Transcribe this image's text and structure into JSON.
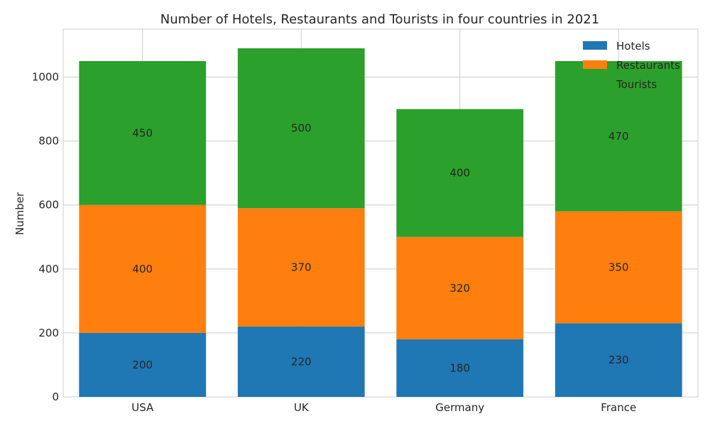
{
  "chart_data": {
    "type": "bar",
    "stacked": true,
    "title": "Number of Hotels, Restaurants and Tourists in four countries in 2021",
    "xlabel": "",
    "ylabel": "Number",
    "categories": [
      "USA",
      "UK",
      "Germany",
      "France"
    ],
    "series": [
      {
        "name": "Hotels",
        "values": [
          200,
          220,
          180,
          230
        ],
        "color": "#1f77b4"
      },
      {
        "name": "Restaurants",
        "values": [
          400,
          370,
          320,
          350
        ],
        "color": "#ff7f0e"
      },
      {
        "name": "Tourists",
        "values": [
          450,
          500,
          400,
          470
        ],
        "color": "#2ca02c"
      }
    ],
    "ylim": [
      0,
      1150
    ],
    "yticks": [
      0,
      200,
      400,
      600,
      800,
      1000
    ],
    "grid": true,
    "legend": "top-right",
    "data_labels": true
  }
}
